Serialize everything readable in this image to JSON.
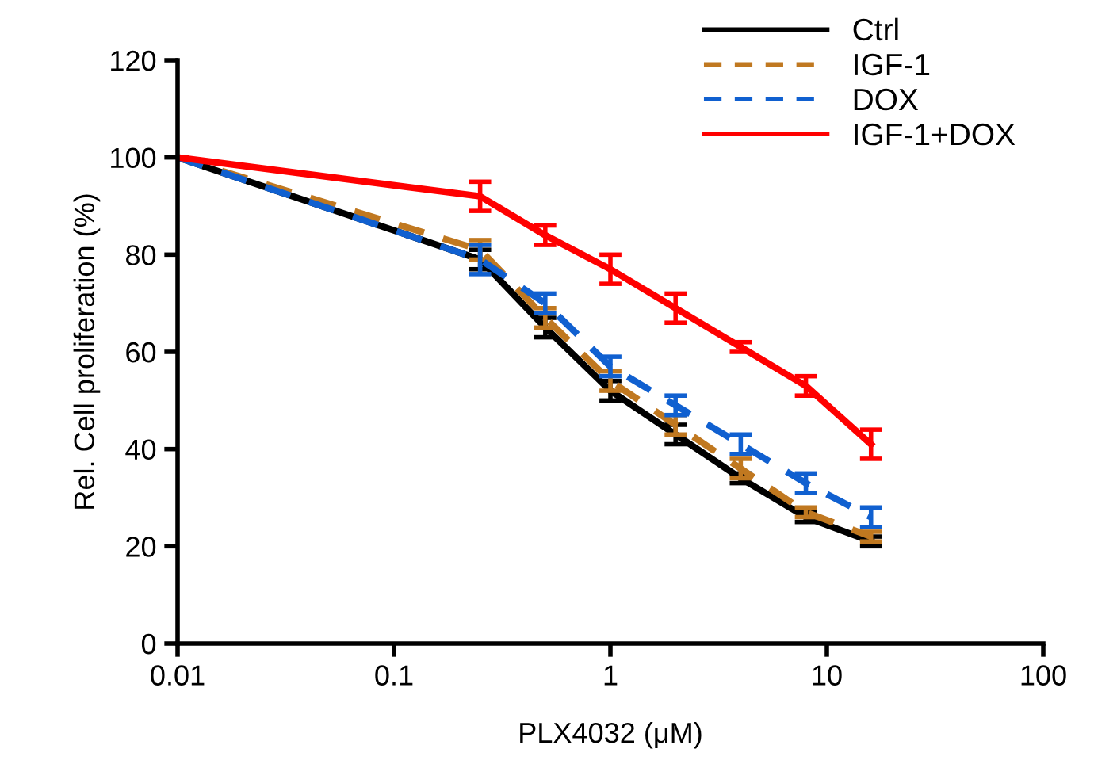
{
  "chart_data": {
    "type": "line",
    "xlabel": "PLX4032 (μM)",
    "ylabel": "Rel. Cell proliferation (%)",
    "log": "x",
    "x": [
      0.01,
      0.25,
      0.5,
      1,
      2,
      4,
      8,
      16
    ],
    "xlim": [
      0.01,
      100
    ],
    "xticks": [
      0.01,
      0.1,
      1,
      10,
      100
    ],
    "ylim": [
      0,
      120
    ],
    "yticks": [
      0,
      20,
      40,
      60,
      80,
      100,
      120
    ],
    "grid": false,
    "legend": "top right",
    "marker": "none",
    "series": [
      {
        "name": "Ctrl",
        "color": "#000000",
        "line_style": "solid",
        "values": [
          100,
          79,
          65,
          52,
          43,
          34,
          26,
          21
        ],
        "errors": [
          0,
          2,
          2,
          2,
          2,
          1,
          1,
          1
        ]
      },
      {
        "name": "IGF-1",
        "color": "#c07820",
        "line_style": "dashed",
        "values": [
          100,
          81,
          67,
          54,
          45,
          36,
          27,
          22
        ],
        "errors": [
          0,
          2,
          2,
          2,
          2,
          2,
          1,
          1
        ]
      },
      {
        "name": "DOX",
        "color": "#1060d0",
        "line_style": "dashed",
        "values": [
          100,
          79,
          70,
          57,
          49,
          41,
          33,
          26
        ],
        "errors": [
          0,
          3,
          2,
          2,
          2,
          2,
          2,
          2
        ]
      },
      {
        "name": "IGF-1+DOX",
        "color": "#ff0000",
        "line_style": "solid",
        "values": [
          100,
          92,
          84,
          77,
          69,
          61,
          53,
          41
        ],
        "errors": [
          0,
          3,
          2,
          3,
          3,
          1,
          2,
          3
        ]
      }
    ]
  }
}
